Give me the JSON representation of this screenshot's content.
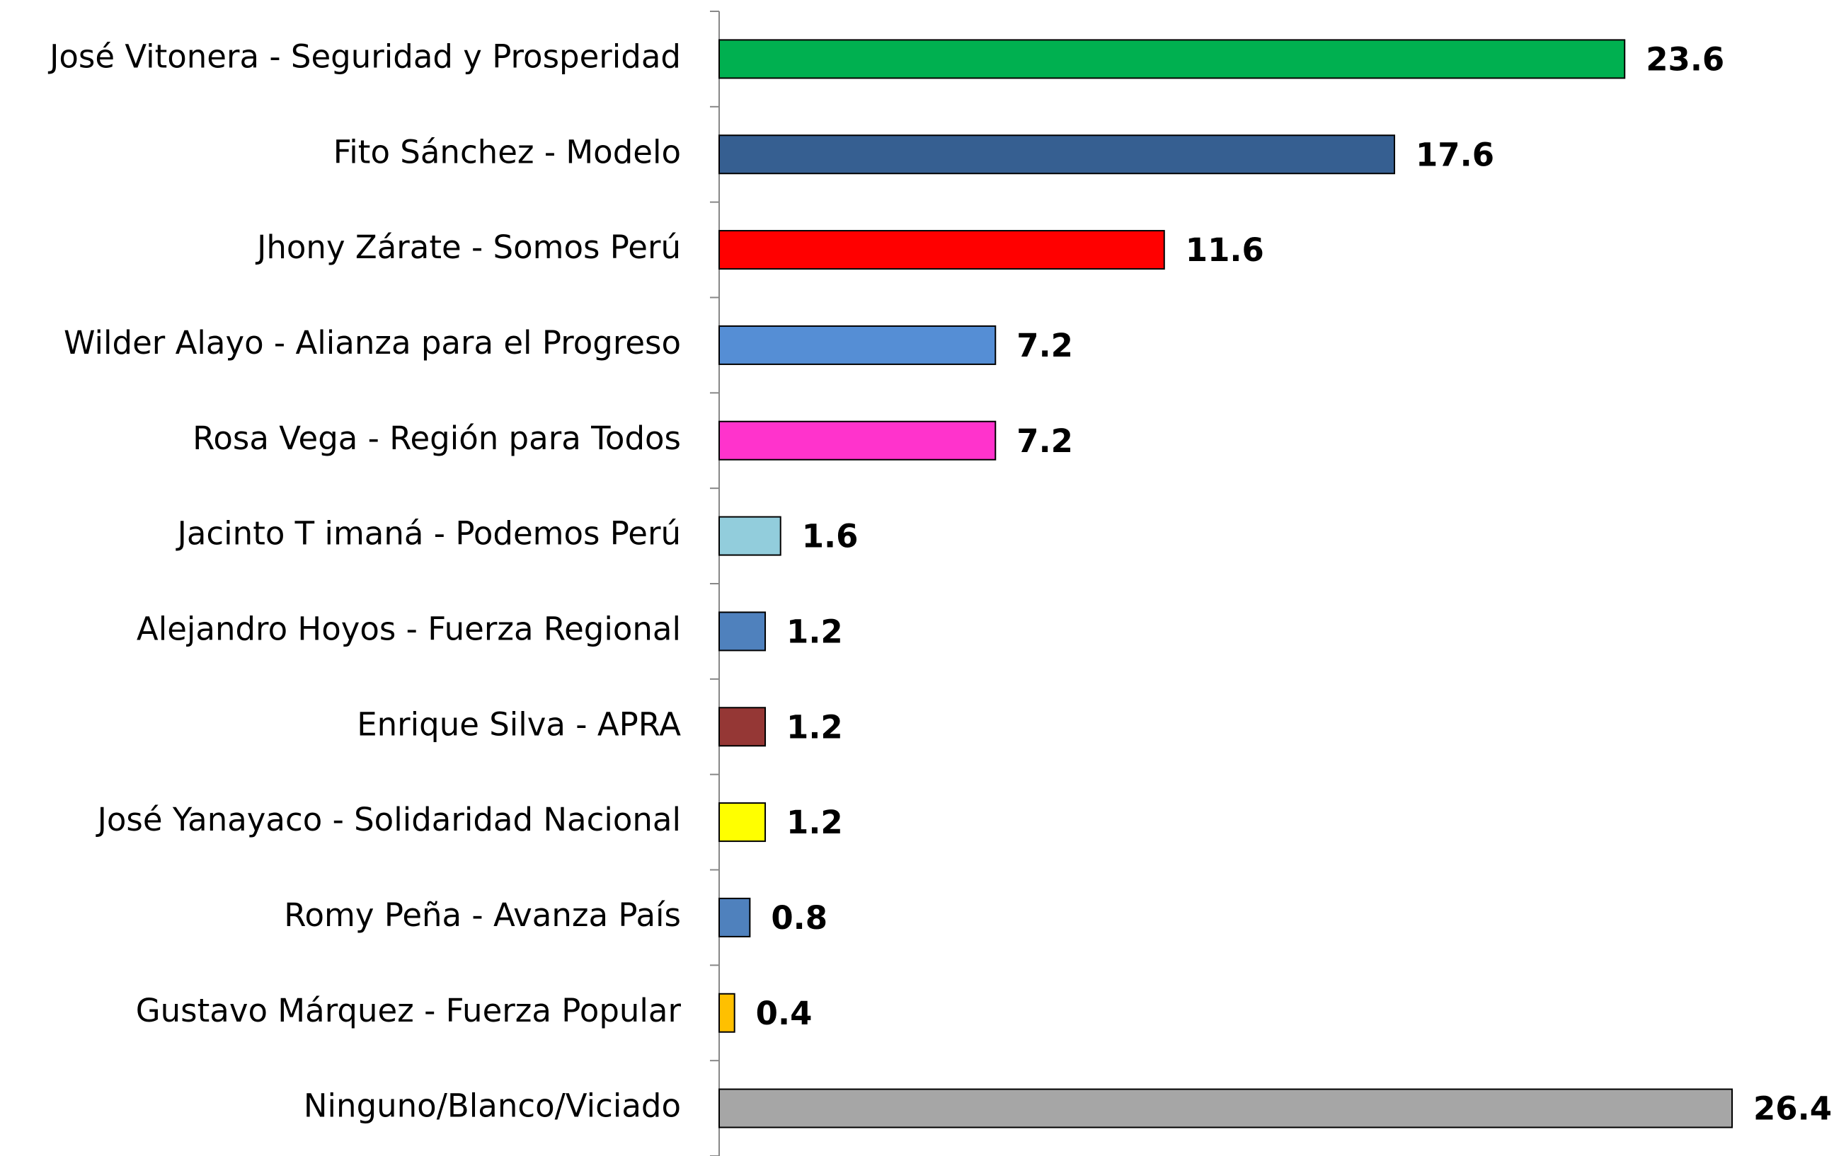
{
  "chart_data": {
    "type": "bar",
    "orientation": "horizontal",
    "categories": [
      "José Vitonera - Seguridad y Prosperidad",
      "Fito Sánchez - Modelo",
      "Jhony Zárate - Somos Perú",
      "Wilder Alayo - Alianza para el Progreso",
      "Rosa Vega - Región para Todos",
      "Jacinto T imaná - Podemos Perú",
      "Alejandro Hoyos - Fuerza Regional",
      "Enrique Silva - APRA",
      "José Yanayaco - Solidaridad Nacional",
      "Romy Peña - Avanza País",
      "Gustavo Márquez - Fuerza Popular",
      "Ninguno/Blanco/Viciado"
    ],
    "values": [
      23.6,
      17.6,
      11.6,
      7.2,
      7.2,
      1.6,
      1.2,
      1.2,
      1.2,
      0.8,
      0.4,
      26.4
    ],
    "value_labels": [
      "23.6",
      "17.6",
      "11.6",
      "7.2",
      "7.2",
      "1.6",
      "1.2",
      "1.2",
      "1.2",
      "0.8",
      "0.4",
      "26.4"
    ],
    "colors": [
      "#00b050",
      "#365f91",
      "#ff0000",
      "#558ed5",
      "#ff33cc",
      "#92cddc",
      "#4f81bd",
      "#953735",
      "#ffff00",
      "#4f81bd",
      "#ffc000",
      "#a6a6a6"
    ]
  }
}
